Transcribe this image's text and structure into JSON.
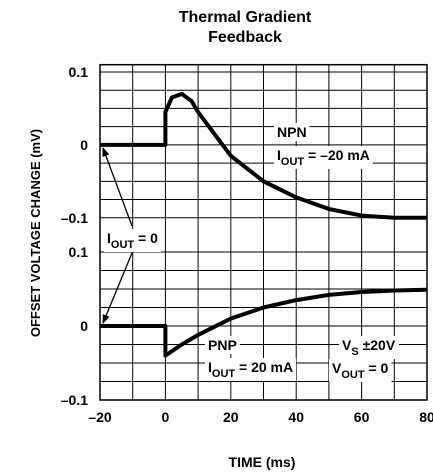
{
  "chart_data": {
    "type": "line",
    "title": [
      "Thermal Gradient",
      "Feedback"
    ],
    "xlabel": "TIME (ms)",
    "ylabel": "OFFSET VOLTAGE CHANGE (mV)",
    "xlim": [
      -20,
      80
    ],
    "xticks": [
      {
        "value": -20,
        "label": "–20"
      },
      0,
      20,
      40,
      60,
      80
    ],
    "xgrid": [
      -10,
      10,
      30,
      50,
      70
    ],
    "panels": [
      {
        "ylim": [
          -0.125,
          0.11
        ],
        "yticks": [
          0.1,
          0,
          {
            "value": -0.1,
            "label": "–0.1"
          }
        ],
        "ygrid": [
          0.075,
          0.05,
          0.025,
          -0.025,
          -0.05,
          -0.075
        ],
        "series": [
          {
            "name": "NPN",
            "color": "#000000",
            "x": [
              -20,
              0,
              0,
              2,
              5,
              8,
              10,
              15,
              20,
              30,
              40,
              50,
              60,
              70,
              80
            ],
            "values": [
              0,
              0,
              0.045,
              0.065,
              0.07,
              0.06,
              0.045,
              0.015,
              -0.015,
              -0.05,
              -0.072,
              -0.088,
              -0.097,
              -0.1,
              -0.1
            ]
          }
        ],
        "annotations": [
          {
            "text": "I",
            "sub": "OUT",
            "after": " = –20 mA"
          }
        ]
      },
      {
        "ylim": [
          -0.1,
          0.125
        ],
        "yticks": [
          0.1,
          0,
          {
            "value": -0.1,
            "label": "–0.1"
          }
        ],
        "ygrid": [
          0.075,
          0.05,
          0.025,
          -0.025,
          -0.05,
          -0.075
        ],
        "series": [
          {
            "name": "PNP",
            "color": "#000000",
            "x": [
              -20,
              0,
              0,
              5,
              10,
              20,
              30,
              40,
              50,
              60,
              70,
              80
            ],
            "values": [
              0,
              0,
              -0.04,
              -0.025,
              -0.012,
              0.01,
              0.025,
              0.035,
              0.042,
              0.046,
              0.048,
              0.049
            ]
          }
        ],
        "annotations": [
          {
            "text": "I",
            "sub": "OUT",
            "after": " = 20 mA"
          },
          {
            "text": "V",
            "sub": "S",
            "after": " ±20V"
          },
          {
            "text": "V",
            "sub": "OUT",
            "after": " = 0"
          }
        ]
      }
    ],
    "annotations": [
      {
        "text": "I",
        "sub": "OUT",
        "after": " = 0"
      }
    ]
  }
}
